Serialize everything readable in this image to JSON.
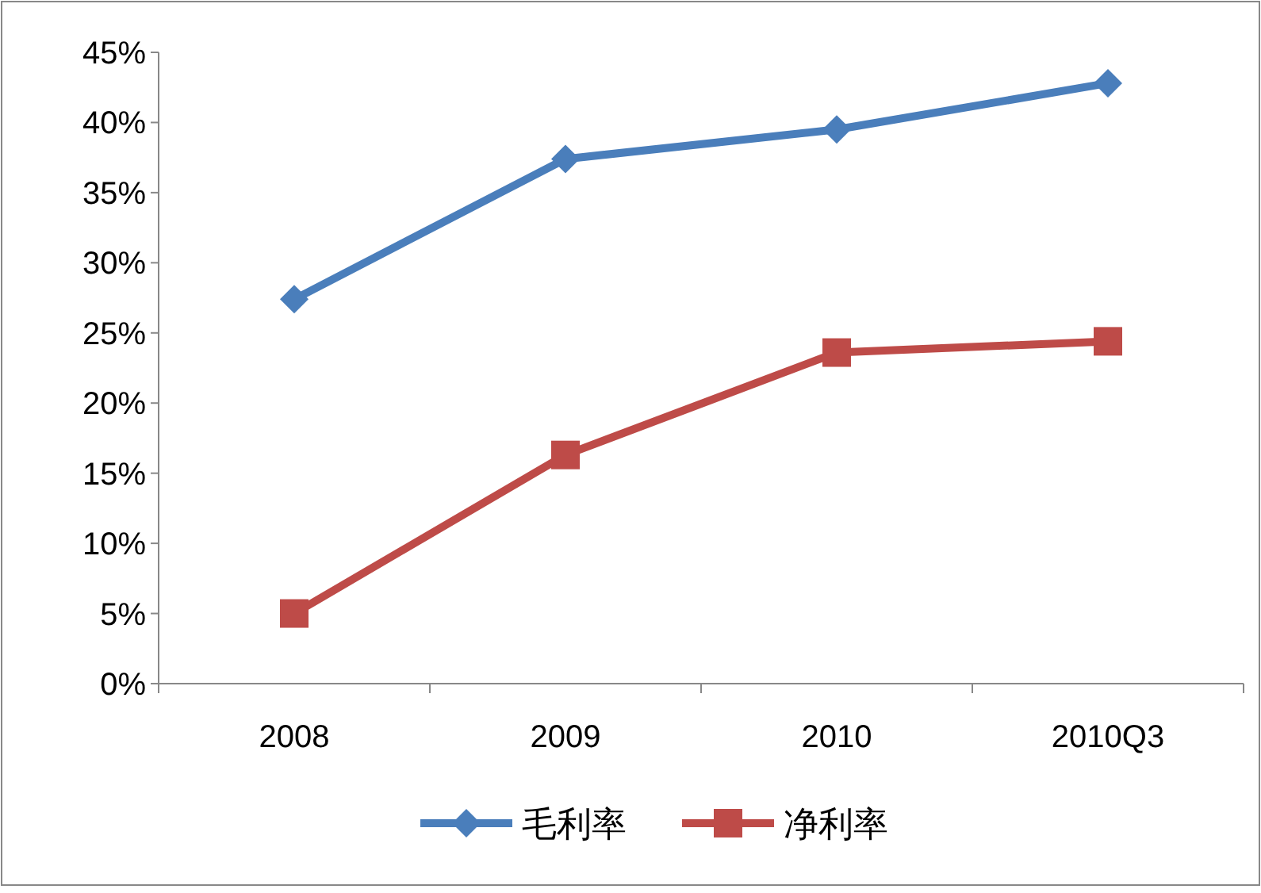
{
  "chart_data": {
    "type": "line",
    "categories": [
      "2008",
      "2009",
      "2010",
      "2010Q3"
    ],
    "series": [
      {
        "name": "毛利率",
        "color": "#4a7ebb",
        "marker": "diamond",
        "values": [
          27.4,
          37.4,
          39.5,
          42.8
        ]
      },
      {
        "name": "净利率",
        "color": "#be4b48",
        "marker": "square",
        "values": [
          5.0,
          16.3,
          23.6,
          24.4
        ]
      }
    ],
    "ylim": [
      0,
      45
    ],
    "yticks": [
      {
        "value": 0,
        "label": "0%"
      },
      {
        "value": 5,
        "label": "5%"
      },
      {
        "value": 10,
        "label": "10%"
      },
      {
        "value": 15,
        "label": "15%"
      },
      {
        "value": 20,
        "label": "20%"
      },
      {
        "value": 25,
        "label": "25%"
      },
      {
        "value": 30,
        "label": "30%"
      },
      {
        "value": 35,
        "label": "35%"
      },
      {
        "value": 40,
        "label": "40%"
      },
      {
        "value": 45,
        "label": "45%"
      }
    ],
    "grid": false,
    "legend": "bottom",
    "line_style": "solid"
  }
}
